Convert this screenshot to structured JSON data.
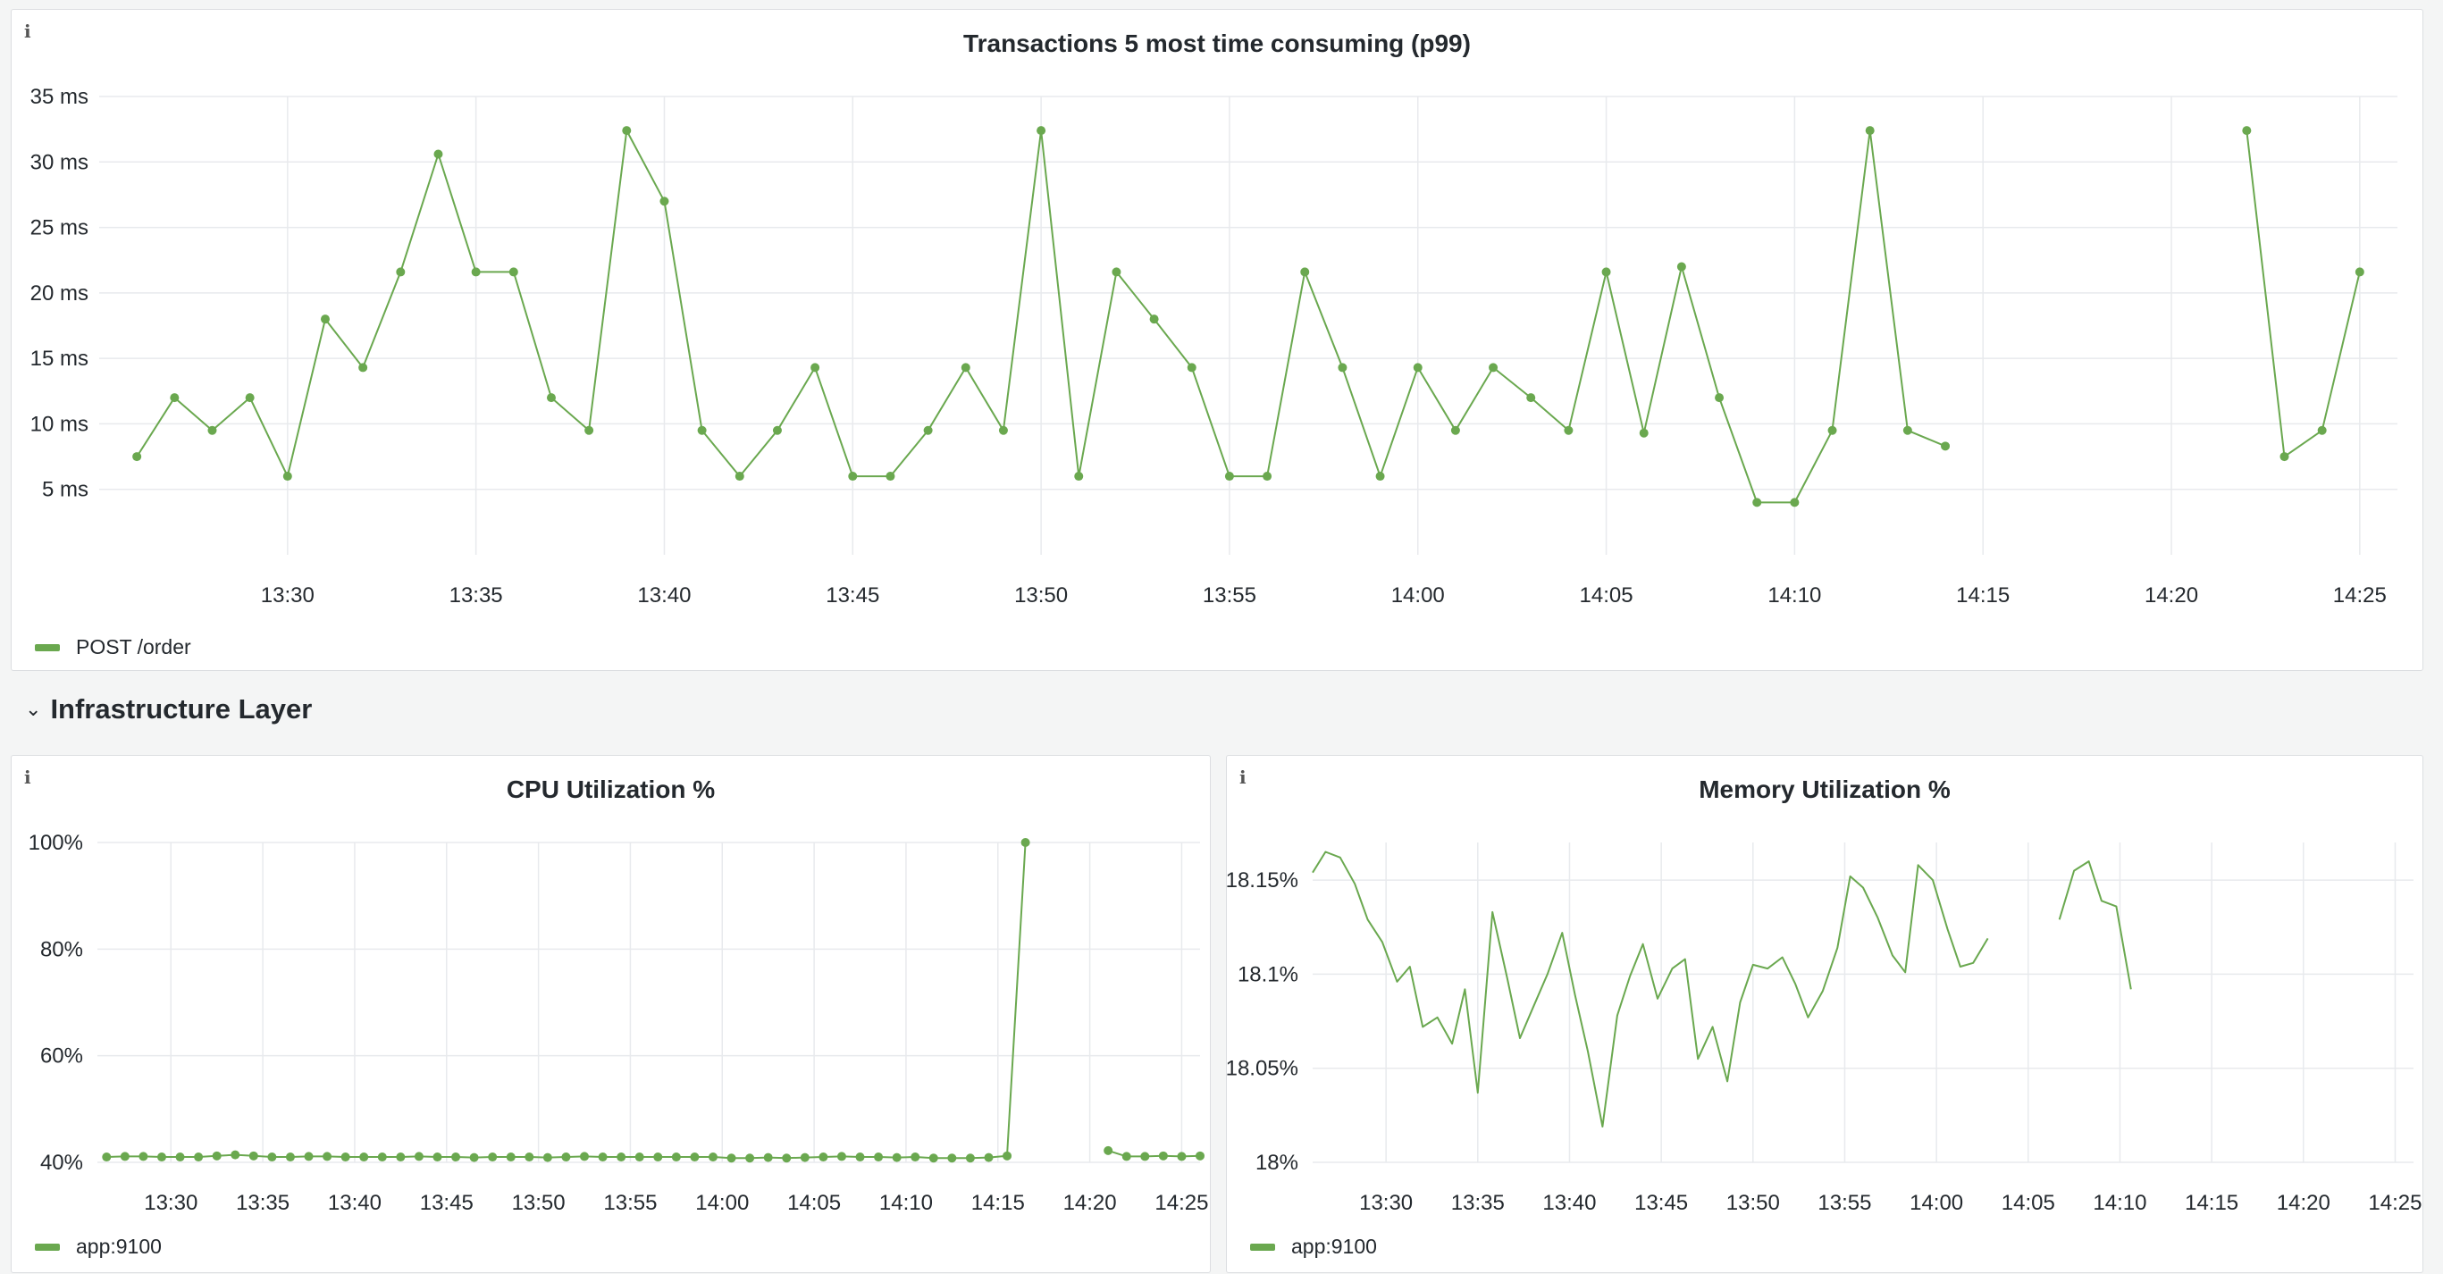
{
  "row_header": {
    "title": "Infrastructure Layer",
    "collapsed": false
  },
  "colors": {
    "series": "#6aa84f",
    "grid": "#e8eaed"
  },
  "icons": {
    "panel_info": "info-icon",
    "row_toggle": "chevron-down-icon"
  },
  "panels": {
    "transactions": {
      "title": "Transactions 5 most time consuming (p99)",
      "info_glyph": "i",
      "legend": "POST /order"
    },
    "cpu": {
      "title": "CPU Utilization %",
      "info_glyph": "i",
      "legend": "app:9100"
    },
    "memory": {
      "title": "Memory Utilization %",
      "info_glyph": "i",
      "legend": "app:9100"
    }
  },
  "chart_data": [
    {
      "type": "line",
      "title": "Transactions 5 most time consuming (p99)",
      "x_ticks": [
        "13:30",
        "13:35",
        "13:40",
        "13:45",
        "13:50",
        "13:55",
        "14:00",
        "14:05",
        "14:10",
        "14:15",
        "14:20",
        "14:25"
      ],
      "y_ticks": [
        "5 ms",
        "10 ms",
        "15 ms",
        "20 ms",
        "25 ms",
        "30 ms",
        "35 ms"
      ],
      "y_tick_values": [
        5,
        10,
        15,
        20,
        25,
        30,
        35
      ],
      "xlim": [
        "13:25",
        "14:26"
      ],
      "ylim": [
        0,
        35
      ],
      "grid": true,
      "show_points": true,
      "legend_position": "bottom-left",
      "series": [
        {
          "name": "POST /order",
          "points": [
            [
              "13:26",
              7.5
            ],
            [
              "13:27",
              12
            ],
            [
              "13:28",
              9.5
            ],
            [
              "13:29",
              12
            ],
            [
              "13:30",
              6
            ],
            [
              "13:31",
              18
            ],
            [
              "13:32",
              14.3
            ],
            [
              "13:33",
              21.6
            ],
            [
              "13:34",
              30.6
            ],
            [
              "13:35",
              21.6
            ],
            [
              "13:36",
              21.6
            ],
            [
              "13:37",
              12
            ],
            [
              "13:38",
              9.5
            ],
            [
              "13:39",
              32.4
            ],
            [
              "13:40",
              27
            ],
            [
              "13:41",
              9.5
            ],
            [
              "13:42",
              6
            ],
            [
              "13:43",
              9.5
            ],
            [
              "13:44",
              14.3
            ],
            [
              "13:45",
              6
            ],
            [
              "13:46",
              6
            ],
            [
              "13:47",
              9.5
            ],
            [
              "13:48",
              14.3
            ],
            [
              "13:49",
              9.5
            ],
            [
              "13:50",
              32.4
            ],
            [
              "13:51",
              6
            ],
            [
              "13:52",
              21.6
            ],
            [
              "13:53",
              18
            ],
            [
              "13:54",
              14.3
            ],
            [
              "13:55",
              6
            ],
            [
              "13:56",
              6
            ],
            [
              "13:57",
              21.6
            ],
            [
              "13:58",
              14.3
            ],
            [
              "13:59",
              6
            ],
            [
              "14:00",
              14.3
            ],
            [
              "14:01",
              9.5
            ],
            [
              "14:02",
              14.3
            ],
            [
              "14:03",
              12
            ],
            [
              "14:04",
              9.5
            ],
            [
              "14:05",
              21.6
            ],
            [
              "14:06",
              9.3
            ],
            [
              "14:07",
              22
            ],
            [
              "14:08",
              12
            ],
            [
              "14:09",
              4
            ],
            [
              "14:10",
              4
            ],
            [
              "14:11",
              9.5
            ],
            [
              "14:12",
              32.4
            ],
            [
              "14:13",
              9.5
            ],
            [
              "14:14",
              8.3
            ],
            [
              "14:15",
              null
            ],
            [
              "14:16",
              null
            ],
            [
              "14:17",
              null
            ],
            [
              "14:18",
              null
            ],
            [
              "14:19",
              null
            ],
            [
              "14:20",
              null
            ],
            [
              "14:21",
              null
            ],
            [
              "14:22",
              32.4
            ],
            [
              "14:23",
              7.5
            ],
            [
              "14:24",
              9.5
            ],
            [
              "14:25",
              21.6
            ]
          ]
        }
      ]
    },
    {
      "type": "line",
      "title": "CPU Utilization %",
      "x_ticks": [
        "13:30",
        "13:35",
        "13:40",
        "13:45",
        "13:50",
        "13:55",
        "14:00",
        "14:05",
        "14:10",
        "14:15",
        "14:20",
        "14:25"
      ],
      "y_ticks": [
        "40%",
        "60%",
        "80%",
        "100%"
      ],
      "y_tick_values": [
        40,
        60,
        80,
        100
      ],
      "xlim": [
        "13:26",
        "14:26"
      ],
      "ylim": [
        40,
        100
      ],
      "grid": true,
      "show_points": true,
      "legend_position": "bottom-left",
      "series": [
        {
          "name": "app:9100",
          "points": [
            [
              "13:26.5",
              41.0
            ],
            [
              "13:27.5",
              41.1
            ],
            [
              "13:28.5",
              41.1
            ],
            [
              "13:29.5",
              41.0
            ],
            [
              "13:30.5",
              41.0
            ],
            [
              "13:31.5",
              41.0
            ],
            [
              "13:32.5",
              41.2
            ],
            [
              "13:33.5",
              41.4
            ],
            [
              "13:34.5",
              41.2
            ],
            [
              "13:35.5",
              41.0
            ],
            [
              "13:36.5",
              41.0
            ],
            [
              "13:37.5",
              41.1
            ],
            [
              "13:38.5",
              41.1
            ],
            [
              "13:39.5",
              41.0
            ],
            [
              "13:40.5",
              41.0
            ],
            [
              "13:41.5",
              41.0
            ],
            [
              "13:42.5",
              41.0
            ],
            [
              "13:43.5",
              41.1
            ],
            [
              "13:44.5",
              41.0
            ],
            [
              "13:45.5",
              41.0
            ],
            [
              "13:46.5",
              40.9
            ],
            [
              "13:47.5",
              41.0
            ],
            [
              "13:48.5",
              41.0
            ],
            [
              "13:49.5",
              41.0
            ],
            [
              "13:50.5",
              40.9
            ],
            [
              "13:51.5",
              41.0
            ],
            [
              "13:52.5",
              41.1
            ],
            [
              "13:53.5",
              41.0
            ],
            [
              "13:54.5",
              41.0
            ],
            [
              "13:55.5",
              41.0
            ],
            [
              "13:56.5",
              41.0
            ],
            [
              "13:57.5",
              41.0
            ],
            [
              "13:58.5",
              41.0
            ],
            [
              "13:59.5",
              41.0
            ],
            [
              "14:00.5",
              40.8
            ],
            [
              "14:01.5",
              40.8
            ],
            [
              "14:02.5",
              40.9
            ],
            [
              "14:03.5",
              40.8
            ],
            [
              "14:04.5",
              40.9
            ],
            [
              "14:05.5",
              41.0
            ],
            [
              "14:06.5",
              41.1
            ],
            [
              "14:07.5",
              41.0
            ],
            [
              "14:08.5",
              41.0
            ],
            [
              "14:09.5",
              40.9
            ],
            [
              "14:10.5",
              41.0
            ],
            [
              "14:11.5",
              40.8
            ],
            [
              "14:12.5",
              40.8
            ],
            [
              "14:13.5",
              40.8
            ],
            [
              "14:14.5",
              40.9
            ],
            [
              "14:15.5",
              41.2
            ],
            [
              "14:16.5",
              100
            ],
            [
              "14:17.5",
              null
            ],
            [
              "14:18.5",
              null
            ],
            [
              "14:19.5",
              null
            ],
            [
              "14:20.5",
              null
            ],
            [
              "14:21",
              42.2
            ],
            [
              "14:22",
              41.1
            ],
            [
              "14:23",
              41.1
            ],
            [
              "14:24",
              41.2
            ],
            [
              "14:25",
              41.1
            ],
            [
              "14:26",
              41.2
            ]
          ]
        }
      ]
    },
    {
      "type": "line",
      "title": "Memory Utilization %",
      "x_ticks": [
        "13:30",
        "13:35",
        "13:40",
        "13:45",
        "13:50",
        "13:55",
        "14:00",
        "14:05",
        "14:10",
        "14:15",
        "14:20",
        "14:25"
      ],
      "y_ticks": [
        "18%",
        "18.05%",
        "18.1%",
        "18.15%"
      ],
      "y_tick_values": [
        18,
        18.05,
        18.1,
        18.15
      ],
      "xlim": [
        "13:26",
        "14:26"
      ],
      "ylim": [
        18,
        18.17
      ],
      "grid": true,
      "show_points": false,
      "legend_position": "bottom-left",
      "series": [
        {
          "name": "app:9100",
          "points": [
            [
              "13:26",
              18.154
            ],
            [
              "13:26.7",
              18.165
            ],
            [
              "13:27.5",
              18.162
            ],
            [
              "13:28.3",
              18.148
            ],
            [
              "13:29",
              18.129
            ],
            [
              "13:29.8",
              18.117
            ],
            [
              "13:30.6",
              18.096
            ],
            [
              "13:31.3",
              18.104
            ],
            [
              "13:32",
              18.072
            ],
            [
              "13:32.8",
              18.077
            ],
            [
              "13:33.6",
              18.063
            ],
            [
              "13:34.3",
              18.092
            ],
            [
              "13:35",
              18.037
            ],
            [
              "13:35.8",
              18.133
            ],
            [
              "13:36.6",
              18.098
            ],
            [
              "13:37.3",
              18.066
            ],
            [
              "13:38",
              18.082
            ],
            [
              "13:38.8",
              18.1
            ],
            [
              "13:39.6",
              18.122
            ],
            [
              "13:40.3",
              18.089
            ],
            [
              "13:41",
              18.059
            ],
            [
              "13:41.8",
              18.019
            ],
            [
              "13:42.6",
              18.078
            ],
            [
              "13:43.3",
              18.099
            ],
            [
              "13:44",
              18.116
            ],
            [
              "13:44.8",
              18.087
            ],
            [
              "13:45.6",
              18.103
            ],
            [
              "13:46.3",
              18.108
            ],
            [
              "13:47",
              18.055
            ],
            [
              "13:47.8",
              18.072
            ],
            [
              "13:48.6",
              18.043
            ],
            [
              "13:49.3",
              18.085
            ],
            [
              "13:50",
              18.105
            ],
            [
              "13:50.8",
              18.103
            ],
            [
              "13:51.6",
              18.109
            ],
            [
              "13:52.3",
              18.095
            ],
            [
              "13:53",
              18.077
            ],
            [
              "13:53.8",
              18.091
            ],
            [
              "13:54.6",
              18.114
            ],
            [
              "13:55.3",
              18.152
            ],
            [
              "13:56",
              18.146
            ],
            [
              "13:56.8",
              18.13
            ],
            [
              "13:57.6",
              18.11
            ],
            [
              "13:58.3",
              18.101
            ],
            [
              "13:59",
              18.158
            ],
            [
              "13:59.8",
              18.15
            ],
            [
              "14:00.6",
              18.124
            ],
            [
              "14:01.3",
              18.104
            ],
            [
              "14:02",
              18.106
            ],
            [
              "14:02.8",
              18.119
            ],
            [
              "14:03.6",
              null
            ],
            [
              "14:04.4",
              null
            ],
            [
              "14:05.2",
              null
            ],
            [
              "14:06",
              null
            ],
            [
              "14:06.7",
              18.129
            ],
            [
              "14:07.5",
              18.155
            ],
            [
              "14:08.3",
              18.16
            ],
            [
              "14:09",
              18.139
            ],
            [
              "14:09.8",
              18.136
            ],
            [
              "14:10.6",
              18.092
            ]
          ]
        }
      ]
    }
  ]
}
